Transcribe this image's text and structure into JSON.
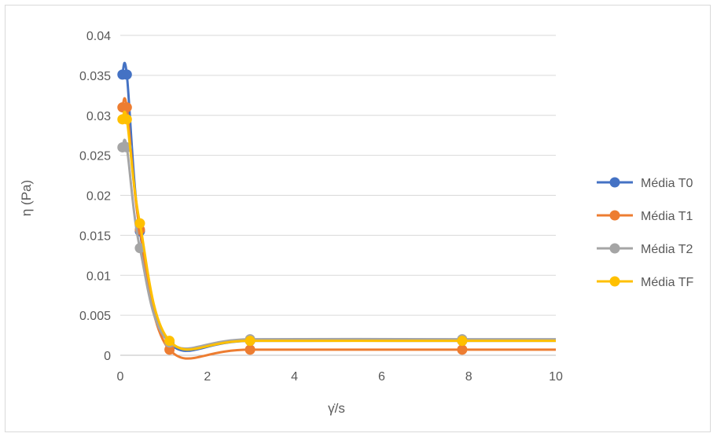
{
  "chart_data": {
    "type": "line",
    "title": "",
    "xlabel": "γ̇/s",
    "ylabel": "η (Pa)",
    "xlim": [
      0,
      10
    ],
    "ylim": [
      0,
      0.04
    ],
    "x_ticks": [
      "0",
      "2",
      "4",
      "6",
      "8",
      "10"
    ],
    "y_ticks": [
      "0",
      "0.005",
      "0.01",
      "0.015",
      "0.02",
      "0.025",
      "0.03",
      "0.035",
      "0.04"
    ],
    "grid": "horizontal",
    "legend_position": "right",
    "series": [
      {
        "name": "Média T0",
        "color": "#4472C4",
        "x": [
          0.05,
          0.15,
          0.45,
          1.13,
          2.98,
          7.85,
          10.0
        ],
        "y": [
          0.0351,
          0.0351,
          0.0155,
          0.0015,
          0.0018,
          0.0018,
          0.0018
        ]
      },
      {
        "name": "Média T1",
        "color": "#ED7D31",
        "x": [
          0.05,
          0.15,
          0.45,
          1.13,
          2.98,
          7.85,
          10.0
        ],
        "y": [
          0.031,
          0.031,
          0.0157,
          0.0007,
          0.0007,
          0.0007,
          0.0007
        ]
      },
      {
        "name": "Média T2",
        "color": "#A5A5A5",
        "x": [
          0.05,
          0.15,
          0.45,
          1.13,
          2.98,
          7.85,
          10.0
        ],
        "y": [
          0.026,
          0.026,
          0.0134,
          0.0016,
          0.002,
          0.002,
          0.002
        ]
      },
      {
        "name": "Média TF",
        "color": "#FFC000",
        "x": [
          0.05,
          0.15,
          0.45,
          1.13,
          2.98,
          7.85,
          10.0
        ],
        "y": [
          0.0295,
          0.0295,
          0.0165,
          0.0018,
          0.0018,
          0.0018,
          0.0018
        ]
      }
    ]
  }
}
